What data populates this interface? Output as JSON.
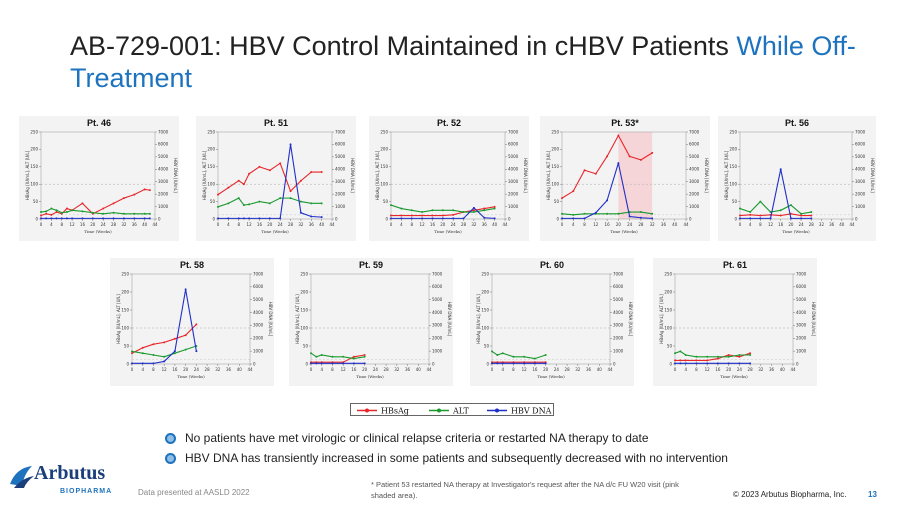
{
  "title": {
    "main": "AB-729-001: HBV Control Maintained in cHBV Patients ",
    "highlight": "While Off-Treatment"
  },
  "axes": {
    "x_label": "Time (Weeks)",
    "y_left_label": "HBsAg [IU/mL], ALT [U/L]",
    "y_right_label": "HBV DNA [IU/mL]",
    "x_ticks": [
      "0",
      "4",
      "8",
      "12",
      "16",
      "20",
      "24",
      "28",
      "32",
      "36",
      "40",
      "44"
    ],
    "y_left_ticks": [
      "0",
      "50",
      "100",
      "150",
      "200",
      "250"
    ],
    "y_right_ticks": [
      "0",
      "1000",
      "2000",
      "3000",
      "4000",
      "5000",
      "6000",
      "7000"
    ]
  },
  "colors": {
    "hbsag": "#e8262a",
    "alt": "#1a9a2e",
    "dna": "#1f2fc8",
    "shade": "#f6d5d8",
    "accent": "#1e73be"
  },
  "chart_data": [
    {
      "type": "line",
      "title": "Pt. 46",
      "x": [
        0,
        2,
        4,
        6,
        8,
        10,
        12,
        16,
        20,
        24,
        28,
        32,
        36,
        40,
        42
      ],
      "series": [
        {
          "name": "HBsAg",
          "values": [
            10,
            15,
            12,
            20,
            15,
            30,
            25,
            45,
            15,
            30,
            45,
            60,
            70,
            85,
            83
          ]
        },
        {
          "name": "ALT",
          "values": [
            20,
            22,
            30,
            25,
            18,
            20,
            25,
            22,
            18,
            15,
            18,
            15,
            15,
            15,
            15
          ]
        },
        {
          "name": "HBV DNA",
          "values": [
            50,
            50,
            50,
            50,
            50,
            50,
            50,
            50,
            50,
            50,
            50,
            50,
            50,
            50,
            50
          ]
        }
      ]
    },
    {
      "type": "line",
      "title": "Pt. 51",
      "x": [
        0,
        4,
        8,
        10,
        12,
        16,
        20,
        24,
        28,
        32,
        36,
        40
      ],
      "series": [
        {
          "name": "HBsAg",
          "values": [
            70,
            90,
            110,
            100,
            130,
            150,
            140,
            160,
            80,
            110,
            135,
            135
          ]
        },
        {
          "name": "ALT",
          "values": [
            35,
            45,
            60,
            40,
            42,
            50,
            45,
            60,
            60,
            50,
            45,
            45
          ]
        },
        {
          "name": "HBV DNA",
          "values": [
            50,
            50,
            50,
            50,
            50,
            50,
            50,
            50,
            6000,
            500,
            200,
            150
          ]
        }
      ]
    },
    {
      "type": "line",
      "title": "Pt. 52",
      "x": [
        0,
        4,
        8,
        12,
        16,
        20,
        24,
        28,
        32,
        36,
        40
      ],
      "series": [
        {
          "name": "HBsAg",
          "values": [
            10,
            10,
            10,
            10,
            10,
            10,
            12,
            20,
            25,
            30,
            35
          ]
        },
        {
          "name": "ALT",
          "values": [
            40,
            30,
            25,
            20,
            25,
            25,
            25,
            20,
            20,
            25,
            30
          ]
        },
        {
          "name": "HBV DNA",
          "values": [
            50,
            50,
            50,
            50,
            50,
            50,
            50,
            50,
            900,
            100,
            50
          ]
        }
      ]
    },
    {
      "type": "line",
      "title": "Pt. 53*",
      "x": [
        0,
        4,
        8,
        12,
        16,
        20,
        24,
        28,
        32
      ],
      "series": [
        {
          "name": "HBsAg",
          "values": [
            60,
            80,
            140,
            130,
            180,
            240,
            180,
            170,
            190
          ]
        },
        {
          "name": "ALT",
          "values": [
            15,
            12,
            15,
            15,
            15,
            15,
            20,
            20,
            15
          ]
        },
        {
          "name": "HBV DNA",
          "values": [
            50,
            50,
            50,
            500,
            1500,
            4500,
            200,
            100,
            50
          ]
        }
      ]
    },
    {
      "type": "line",
      "title": "Pt. 56",
      "x": [
        0,
        4,
        8,
        12,
        16,
        20,
        24,
        28
      ],
      "series": [
        {
          "name": "HBsAg",
          "values": [
            10,
            12,
            10,
            12,
            10,
            15,
            10,
            10
          ]
        },
        {
          "name": "ALT",
          "values": [
            30,
            20,
            50,
            20,
            25,
            40,
            15,
            20
          ]
        },
        {
          "name": "HBV DNA",
          "values": [
            50,
            50,
            50,
            50,
            4000,
            50,
            50,
            50
          ]
        }
      ]
    },
    {
      "type": "line",
      "title": "Pt. 58",
      "x": [
        0,
        4,
        8,
        12,
        16,
        20,
        24
      ],
      "series": [
        {
          "name": "HBsAg",
          "values": [
            30,
            45,
            55,
            60,
            70,
            80,
            110
          ]
        },
        {
          "name": "ALT",
          "values": [
            35,
            30,
            25,
            20,
            30,
            40,
            50
          ]
        },
        {
          "name": "HBV DNA",
          "values": [
            50,
            50,
            50,
            200,
            1000,
            5800,
            1000
          ]
        }
      ]
    },
    {
      "type": "line",
      "title": "Pt. 59",
      "x": [
        0,
        2,
        4,
        8,
        12,
        16,
        20
      ],
      "series": [
        {
          "name": "HBsAg",
          "values": [
            5,
            5,
            5,
            5,
            5,
            20,
            25
          ]
        },
        {
          "name": "ALT",
          "values": [
            30,
            20,
            25,
            20,
            20,
            15,
            20
          ]
        },
        {
          "name": "HBV DNA",
          "values": [
            50,
            50,
            50,
            50,
            50,
            50,
            50
          ]
        }
      ]
    },
    {
      "type": "line",
      "title": "Pt. 60",
      "x": [
        0,
        2,
        4,
        8,
        12,
        16,
        20
      ],
      "series": [
        {
          "name": "HBsAg",
          "values": [
            5,
            5,
            5,
            5,
            5,
            5,
            5
          ]
        },
        {
          "name": "ALT",
          "values": [
            35,
            25,
            30,
            20,
            20,
            15,
            25
          ]
        },
        {
          "name": "HBV DNA",
          "values": [
            50,
            50,
            50,
            50,
            50,
            50,
            50
          ]
        }
      ]
    },
    {
      "type": "line",
      "title": "Pt. 61",
      "x": [
        0,
        2,
        4,
        8,
        12,
        16,
        20,
        24,
        28
      ],
      "series": [
        {
          "name": "HBsAg",
          "values": [
            10,
            10,
            10,
            10,
            10,
            15,
            25,
            20,
            30
          ]
        },
        {
          "name": "ALT",
          "values": [
            30,
            35,
            25,
            20,
            20,
            20,
            20,
            25,
            25
          ]
        },
        {
          "name": "HBV DNA",
          "values": [
            50,
            50,
            50,
            50,
            50,
            50,
            50,
            50,
            50
          ]
        }
      ]
    }
  ],
  "legend": [
    {
      "label": "HBsAg"
    },
    {
      "label": "ALT"
    },
    {
      "label": "HBV DNA"
    }
  ],
  "bullets": [
    "No patients have met virologic or clinical relapse criteria or restarted NA therapy to date",
    "HBV DNA has transiently increased in some patients and subsequently decreased with no intervention"
  ],
  "logo": {
    "name": "Arbutus",
    "sub": "BIOPHARMA"
  },
  "source": "Data presented at AASLD 2022",
  "footnote": "* Patient 53 restarted NA therapy at Investigator's request after the NA d/c FU W20 visit (pink shaded area).",
  "copyright": "© 2023 Arbutus Biopharma, Inc.",
  "page_number": "13"
}
